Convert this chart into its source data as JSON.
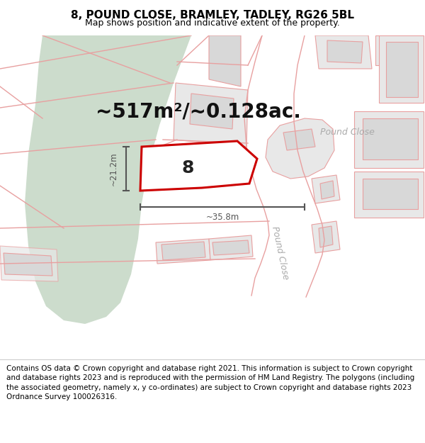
{
  "title": "8, POUND CLOSE, BRAMLEY, TADLEY, RG26 5BL",
  "subtitle": "Map shows position and indicative extent of the property.",
  "footer": "Contains OS data © Crown copyright and database right 2021. This information is subject to Crown copyright and database rights 2023 and is reproduced with the permission of HM Land Registry. The polygons (including the associated geometry, namely x, y co-ordinates) are subject to Crown copyright and database rights 2023 Ordnance Survey 100026316.",
  "area_label": "~517m²/~0.128ac.",
  "number_label": "8",
  "dim_width_label": "~35.8m",
  "dim_height_label": "~21.2m",
  "road_label_diag": "Pound Close",
  "road_label_horiz": "Pound Close",
  "background_color": "#ffffff",
  "map_bg": "#f5f5f5",
  "green_area_color": "#ccdccc",
  "building_fill": "#d8d8d8",
  "building_edge": "#e8a0a0",
  "parcel_fill": "#e8e8e8",
  "parcel_edge": "#e8a0a0",
  "road_color": "#e8a0a0",
  "main_plot_fill": "#ffffff",
  "main_plot_edge": "#cc0000",
  "dim_line_color": "#555555",
  "title_fontsize": 11,
  "subtitle_fontsize": 9,
  "footer_fontsize": 7.5,
  "area_fontsize": 20,
  "number_fontsize": 18,
  "road_fontsize": 9,
  "figsize": [
    6.0,
    6.25
  ],
  "dpi": 100
}
